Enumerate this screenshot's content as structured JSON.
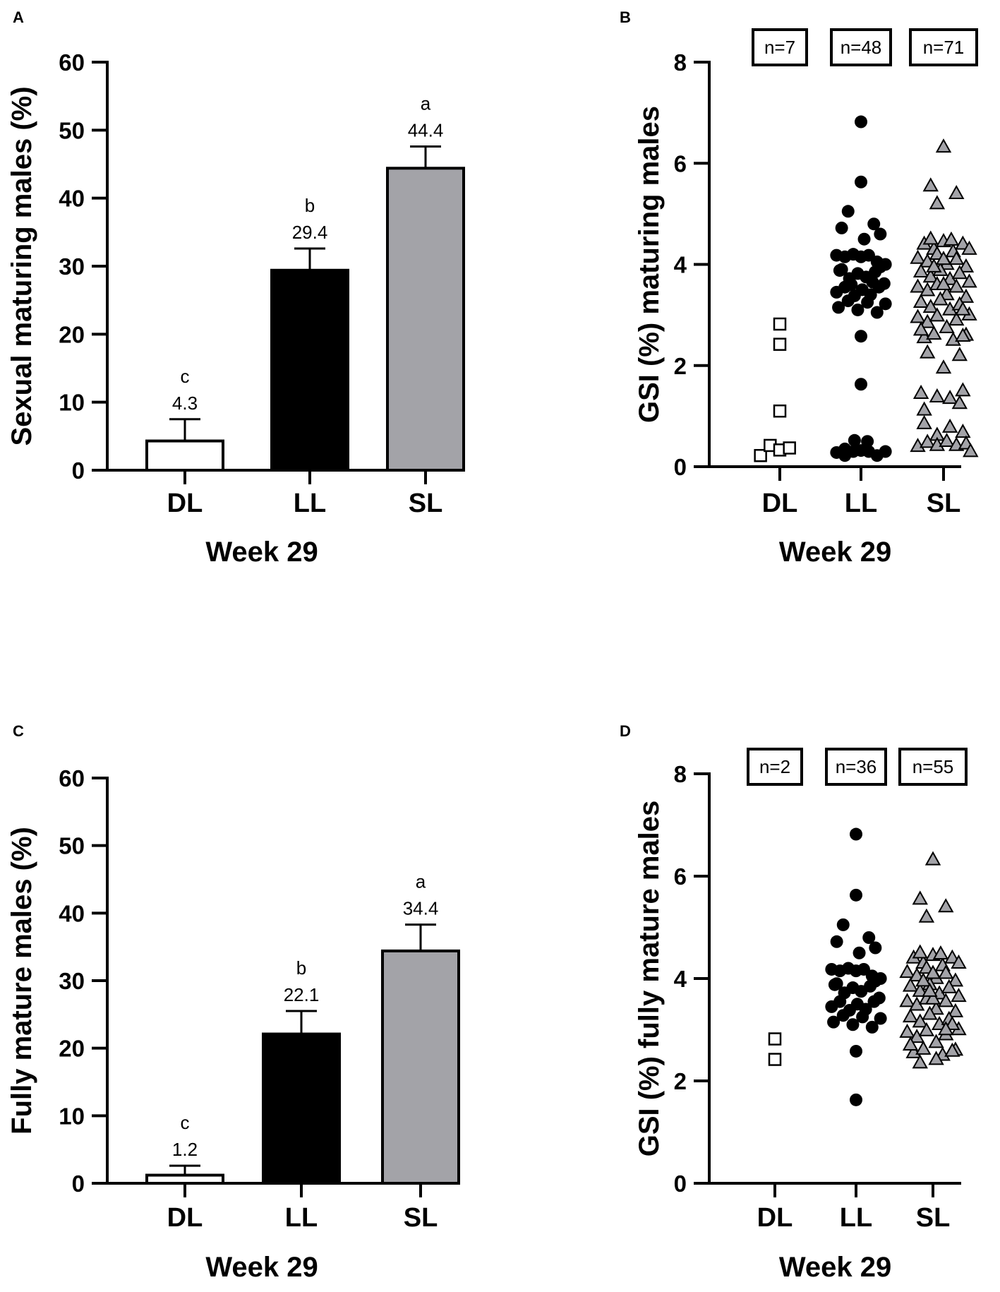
{
  "colors": {
    "DL": "#ffffff",
    "LL": "#000000",
    "SL": "#a3a3a8",
    "axis": "#000000"
  },
  "chart_data": [
    {
      "panel": "A",
      "type": "bar",
      "title": "",
      "xlabel": "Week 29",
      "ylabel": "Sexual maturing males (%)",
      "ylim": [
        0,
        60
      ],
      "yticks": [
        0,
        10,
        20,
        30,
        40,
        50,
        60
      ],
      "categories": [
        "DL",
        "LL",
        "SL"
      ],
      "values": [
        4.3,
        29.4,
        44.4
      ],
      "errors": [
        3.2,
        3.2,
        3.2
      ],
      "value_labels": [
        "4.3",
        "29.4",
        "44.4"
      ],
      "significance": [
        "c",
        "b",
        "a"
      ]
    },
    {
      "panel": "B",
      "type": "scatter",
      "title": "",
      "xlabel": "Week 29",
      "ylabel": "GSI (%) maturing males",
      "ylim": [
        0,
        8
      ],
      "yticks": [
        0,
        2,
        4,
        6,
        8
      ],
      "categories": [
        "DL",
        "LL",
        "SL"
      ],
      "n_labels": [
        "n=7",
        "n=48",
        "n=71"
      ],
      "series": [
        {
          "name": "DL",
          "marker": "square",
          "points": [
            [
              -0.3,
              0.22
            ],
            [
              -0.15,
              0.42
            ],
            [
              0.0,
              0.33
            ],
            [
              0.15,
              0.37
            ],
            [
              0.0,
              1.1
            ],
            [
              0.0,
              2.42
            ],
            [
              0.0,
              2.82
            ]
          ]
        },
        {
          "name": "LL",
          "marker": "circle",
          "points": [
            [
              0.0,
              6.82
            ],
            [
              0.0,
              5.63
            ],
            [
              -0.2,
              5.05
            ],
            [
              0.2,
              4.8
            ],
            [
              -0.3,
              4.72
            ],
            [
              0.05,
              4.5
            ],
            [
              0.3,
              4.6
            ],
            [
              -0.38,
              4.18
            ],
            [
              -0.25,
              4.15
            ],
            [
              -0.12,
              4.2
            ],
            [
              0.0,
              4.15
            ],
            [
              0.12,
              4.18
            ],
            [
              0.25,
              4.05
            ],
            [
              0.38,
              4.0
            ],
            [
              -0.33,
              3.88
            ],
            [
              -0.18,
              3.72
            ],
            [
              -0.05,
              3.82
            ],
            [
              0.08,
              3.75
            ],
            [
              0.22,
              3.85
            ],
            [
              0.36,
              3.62
            ],
            [
              -0.38,
              3.45
            ],
            [
              -0.25,
              3.55
            ],
            [
              -0.1,
              3.38
            ],
            [
              0.02,
              3.5
            ],
            [
              0.15,
              3.4
            ],
            [
              0.28,
              3.55
            ],
            [
              -0.35,
              3.15
            ],
            [
              -0.2,
              3.28
            ],
            [
              -0.05,
              3.1
            ],
            [
              0.1,
              3.25
            ],
            [
              0.25,
              3.05
            ],
            [
              0.38,
              3.22
            ],
            [
              0.0,
              2.58
            ],
            [
              0.0,
              1.63
            ],
            [
              -0.1,
              0.52
            ],
            [
              0.1,
              0.5
            ],
            [
              -0.38,
              0.28
            ],
            [
              -0.25,
              0.35
            ],
            [
              -0.12,
              0.3
            ],
            [
              0.0,
              0.32
            ],
            [
              0.12,
              0.3
            ],
            [
              0.25,
              0.22
            ],
            [
              0.38,
              0.3
            ],
            [
              -0.3,
              3.9
            ],
            [
              0.3,
              3.95
            ],
            [
              -0.15,
              3.6
            ],
            [
              0.18,
              3.65
            ],
            [
              -0.25,
              0.22
            ]
          ]
        },
        {
          "name": "SL",
          "marker": "triangle",
          "points": [
            [
              0.0,
              6.32
            ],
            [
              -0.2,
              5.55
            ],
            [
              -0.1,
              5.2
            ],
            [
              0.2,
              5.4
            ],
            [
              -0.3,
              4.4
            ],
            [
              -0.15,
              4.3
            ],
            [
              0.0,
              4.45
            ],
            [
              0.15,
              4.25
            ],
            [
              0.3,
              4.4
            ],
            [
              -0.4,
              4.12
            ],
            [
              -0.25,
              4.05
            ],
            [
              -0.1,
              4.2
            ],
            [
              0.05,
              4.0
            ],
            [
              0.2,
              4.1
            ],
            [
              0.35,
              3.95
            ],
            [
              -0.35,
              3.85
            ],
            [
              -0.2,
              3.75
            ],
            [
              -0.05,
              3.88
            ],
            [
              0.1,
              3.7
            ],
            [
              0.25,
              3.82
            ],
            [
              0.4,
              3.65
            ],
            [
              -0.4,
              3.55
            ],
            [
              -0.25,
              3.48
            ],
            [
              -0.1,
              3.6
            ],
            [
              0.05,
              3.4
            ],
            [
              0.2,
              3.55
            ],
            [
              0.35,
              3.35
            ],
            [
              -0.35,
              3.25
            ],
            [
              -0.2,
              3.15
            ],
            [
              -0.05,
              3.3
            ],
            [
              0.1,
              3.1
            ],
            [
              0.25,
              3.2
            ],
            [
              0.4,
              3.0
            ],
            [
              -0.4,
              2.95
            ],
            [
              -0.25,
              2.85
            ],
            [
              -0.1,
              2.98
            ],
            [
              0.05,
              2.75
            ],
            [
              0.2,
              2.9
            ],
            [
              0.35,
              2.6
            ],
            [
              -0.3,
              2.55
            ],
            [
              -0.15,
              2.62
            ],
            [
              0.15,
              2.5
            ],
            [
              0.3,
              2.58
            ],
            [
              -0.25,
              2.25
            ],
            [
              0.0,
              1.95
            ],
            [
              0.25,
              2.2
            ],
            [
              -0.35,
              1.45
            ],
            [
              -0.1,
              1.38
            ],
            [
              0.1,
              1.35
            ],
            [
              0.3,
              1.5
            ],
            [
              -0.3,
              1.12
            ],
            [
              0.25,
              1.25
            ],
            [
              -0.3,
              0.85
            ],
            [
              -0.1,
              0.62
            ],
            [
              0.1,
              0.78
            ],
            [
              0.3,
              0.68
            ],
            [
              -0.4,
              0.4
            ],
            [
              -0.25,
              0.48
            ],
            [
              -0.1,
              0.42
            ],
            [
              0.05,
              0.5
            ],
            [
              0.2,
              0.42
            ],
            [
              0.35,
              0.45
            ],
            [
              0.42,
              0.3
            ],
            [
              -0.2,
              4.5
            ],
            [
              0.12,
              4.48
            ],
            [
              -0.15,
              3.95
            ],
            [
              0.0,
              3.6
            ],
            [
              0.3,
              3.1
            ],
            [
              -0.35,
              2.7
            ],
            [
              0.0,
              4.1
            ],
            [
              0.4,
              4.3
            ]
          ]
        }
      ]
    },
    {
      "panel": "C",
      "type": "bar",
      "title": "",
      "xlabel": "Week 29",
      "ylabel": "Fully mature males (%)",
      "ylim": [
        0,
        60
      ],
      "yticks": [
        0,
        10,
        20,
        30,
        40,
        50,
        60
      ],
      "categories": [
        "DL",
        "LL",
        "SL"
      ],
      "values": [
        1.2,
        22.1,
        34.4
      ],
      "errors": [
        1.4,
        3.4,
        3.9
      ],
      "value_labels": [
        "1.2",
        "22.1",
        "34.4"
      ],
      "significance": [
        "c",
        "b",
        "a"
      ]
    },
    {
      "panel": "D",
      "type": "scatter",
      "title": "",
      "xlabel": "Week 29",
      "ylabel": "GSI (%) fully mature males",
      "ylim": [
        0,
        8
      ],
      "yticks": [
        0,
        2,
        4,
        6,
        8
      ],
      "categories": [
        "DL",
        "LL",
        "SL"
      ],
      "n_labels": [
        "n=2",
        "n=36",
        "n=55"
      ],
      "series": [
        {
          "name": "DL",
          "marker": "square",
          "points": [
            [
              0.0,
              2.82
            ],
            [
              0.0,
              2.42
            ]
          ]
        },
        {
          "name": "LL",
          "marker": "circle",
          "points": [
            [
              0.0,
              6.82
            ],
            [
              0.0,
              5.63
            ],
            [
              -0.2,
              5.05
            ],
            [
              0.2,
              4.8
            ],
            [
              -0.3,
              4.72
            ],
            [
              0.05,
              4.5
            ],
            [
              0.3,
              4.6
            ],
            [
              -0.38,
              4.18
            ],
            [
              -0.25,
              4.15
            ],
            [
              -0.12,
              4.2
            ],
            [
              0.0,
              4.15
            ],
            [
              0.12,
              4.18
            ],
            [
              0.25,
              4.05
            ],
            [
              0.38,
              4.0
            ],
            [
              -0.33,
              3.88
            ],
            [
              -0.18,
              3.72
            ],
            [
              -0.05,
              3.82
            ],
            [
              0.08,
              3.75
            ],
            [
              0.22,
              3.85
            ],
            [
              0.36,
              3.62
            ],
            [
              -0.38,
              3.45
            ],
            [
              -0.25,
              3.55
            ],
            [
              -0.1,
              3.38
            ],
            [
              0.02,
              3.5
            ],
            [
              0.15,
              3.4
            ],
            [
              0.28,
              3.55
            ],
            [
              -0.35,
              3.15
            ],
            [
              -0.2,
              3.28
            ],
            [
              -0.05,
              3.1
            ],
            [
              0.1,
              3.25
            ],
            [
              0.25,
              3.05
            ],
            [
              0.38,
              3.22
            ],
            [
              0.0,
              2.58
            ],
            [
              0.0,
              1.63
            ],
            [
              -0.3,
              3.9
            ],
            [
              0.3,
              3.95
            ]
          ]
        },
        {
          "name": "SL",
          "marker": "triangle",
          "points": [
            [
              0.0,
              6.32
            ],
            [
              -0.2,
              5.55
            ],
            [
              -0.1,
              5.2
            ],
            [
              0.2,
              5.4
            ],
            [
              -0.3,
              4.4
            ],
            [
              -0.15,
              4.3
            ],
            [
              0.0,
              4.45
            ],
            [
              0.15,
              4.25
            ],
            [
              0.3,
              4.4
            ],
            [
              -0.4,
              4.12
            ],
            [
              -0.25,
              4.05
            ],
            [
              -0.1,
              4.2
            ],
            [
              0.05,
              4.0
            ],
            [
              0.2,
              4.1
            ],
            [
              0.35,
              3.95
            ],
            [
              -0.35,
              3.85
            ],
            [
              -0.2,
              3.75
            ],
            [
              -0.05,
              3.88
            ],
            [
              0.1,
              3.7
            ],
            [
              0.25,
              3.82
            ],
            [
              0.4,
              3.65
            ],
            [
              -0.4,
              3.55
            ],
            [
              -0.25,
              3.48
            ],
            [
              -0.1,
              3.6
            ],
            [
              0.05,
              3.4
            ],
            [
              0.2,
              3.55
            ],
            [
              0.35,
              3.35
            ],
            [
              -0.35,
              3.25
            ],
            [
              -0.2,
              3.15
            ],
            [
              -0.05,
              3.3
            ],
            [
              0.1,
              3.1
            ],
            [
              0.25,
              3.2
            ],
            [
              0.4,
              3.0
            ],
            [
              -0.4,
              2.95
            ],
            [
              -0.25,
              2.85
            ],
            [
              -0.1,
              2.98
            ],
            [
              0.05,
              2.75
            ],
            [
              0.2,
              2.9
            ],
            [
              0.35,
              2.6
            ],
            [
              -0.3,
              2.55
            ],
            [
              -0.15,
              2.62
            ],
            [
              0.15,
              2.5
            ],
            [
              0.3,
              2.58
            ],
            [
              -0.2,
              2.35
            ],
            [
              0.05,
              2.42
            ],
            [
              -0.2,
              4.5
            ],
            [
              0.12,
              4.48
            ],
            [
              -0.15,
              3.95
            ],
            [
              0.0,
              3.6
            ],
            [
              0.3,
              3.1
            ],
            [
              -0.35,
              2.7
            ],
            [
              0.0,
              4.1
            ],
            [
              0.4,
              4.3
            ],
            [
              0.2,
              3.0
            ],
            [
              -0.05,
              3.75
            ]
          ]
        }
      ]
    }
  ]
}
